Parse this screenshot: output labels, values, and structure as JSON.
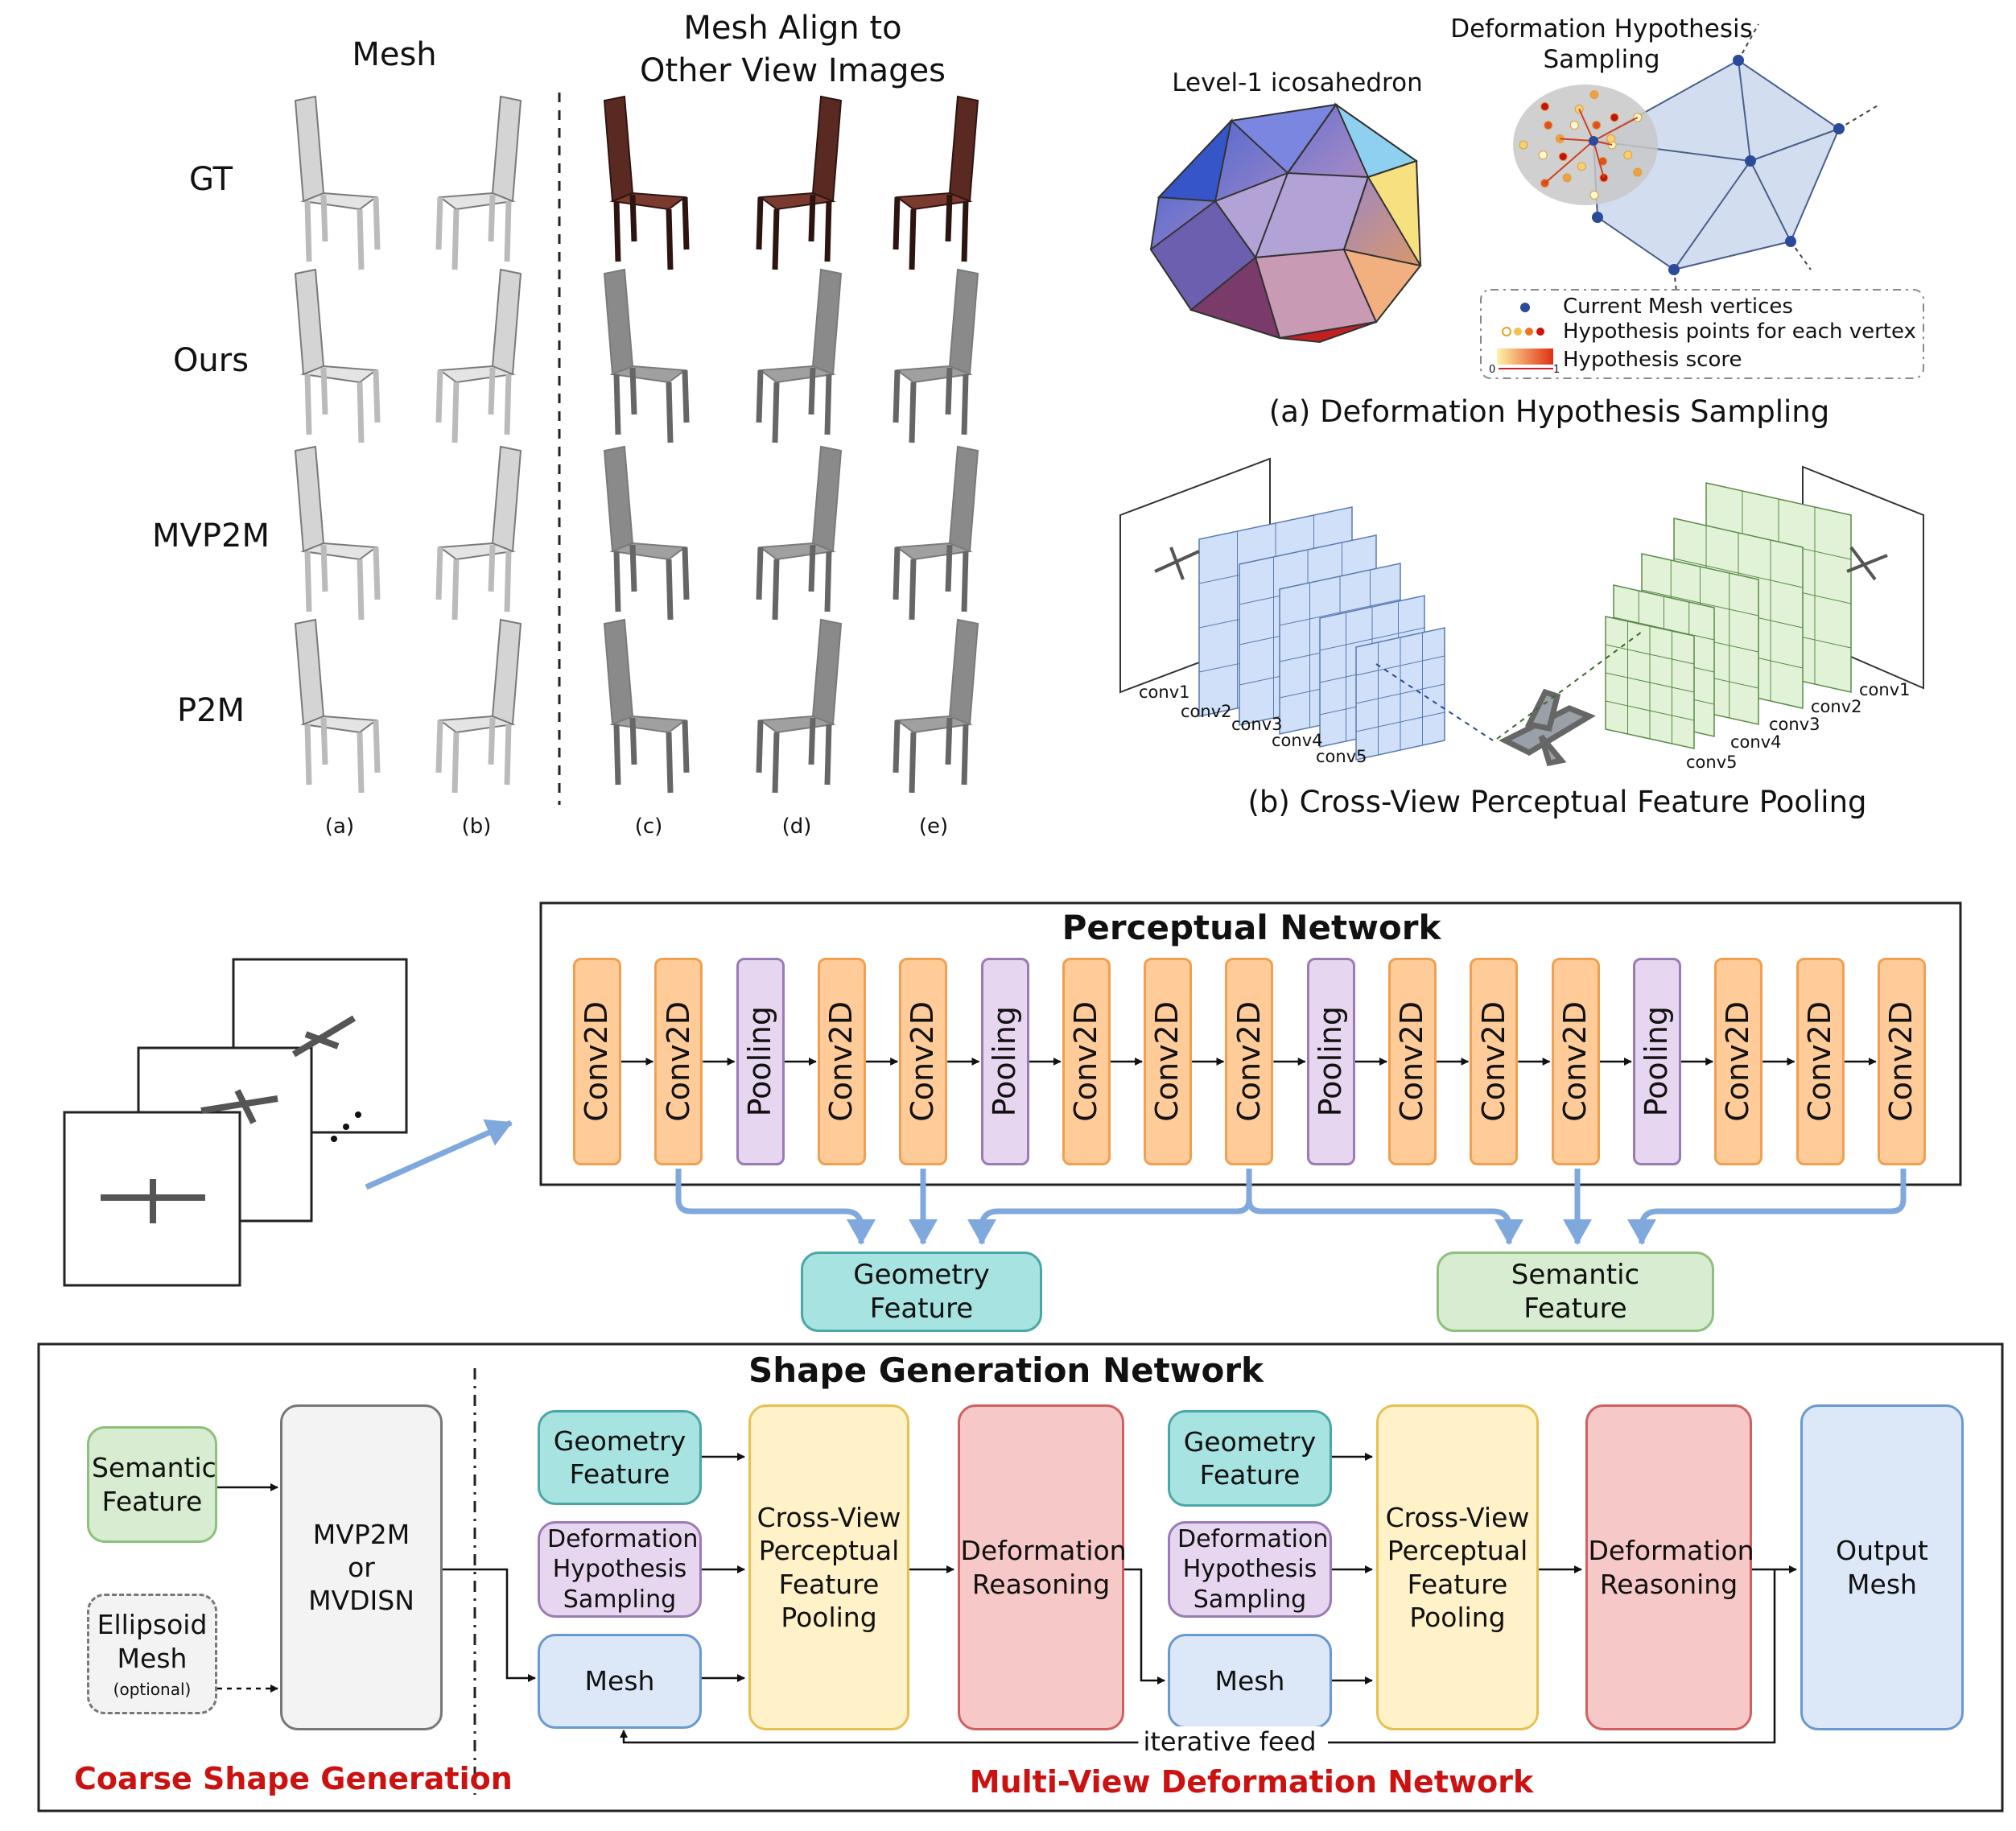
{
  "top_left": {
    "col_mesh": "Mesh",
    "col_align_line1": "Mesh Align to",
    "col_align_line2": "Other View Images",
    "rows": [
      "GT",
      "Ours",
      "MVP2M",
      "P2M"
    ],
    "sub_labels": [
      "(a)",
      "(b)",
      "(c)",
      "(d)",
      "(e)"
    ]
  },
  "panel_a": {
    "ico_title": "Level-1 icosahedron",
    "dhs_title_line1": "Deformation Hypothesis",
    "dhs_title_line2": "Sampling",
    "legend": [
      "Current Mesh vertices",
      "Hypothesis points for each vertex",
      "Hypothesis score"
    ],
    "score_min": "0",
    "score_max": "1",
    "caption": "(a) Deformation Hypothesis Sampling"
  },
  "panel_b": {
    "left_convs": [
      "conv1",
      "conv2",
      "conv3",
      "conv4",
      "conv5"
    ],
    "right_convs": [
      "conv1",
      "conv2",
      "conv3",
      "conv4",
      "conv5"
    ],
    "caption": "(b) Cross-View Perceptual Feature Pooling"
  },
  "perceptual": {
    "title": "Perceptual Network",
    "layers": [
      "Conv2D",
      "Conv2D",
      "Pooling",
      "Conv2D",
      "Conv2D",
      "Pooling",
      "Conv2D",
      "Conv2D",
      "Conv2D",
      "Pooling",
      "Conv2D",
      "Conv2D",
      "Conv2D",
      "Pooling",
      "Conv2D",
      "Conv2D",
      "Conv2D"
    ],
    "geometry_feature": "Geometry Feature",
    "semantic_feature": "Semantic Feature"
  },
  "shape_gen": {
    "title": "Shape Generation Network",
    "semantic_feature": "Semantic Feature",
    "ellipsoid_line1": "Ellipsoid",
    "ellipsoid_line2": "Mesh",
    "ellipsoid_note": "(optional)",
    "mvp2m_line1": "MVP2M",
    "mvp2m_line2": "or",
    "mvp2m_line3": "MVDISN",
    "geometry_feature_1": "Geometry Feature",
    "dhs_1": "Deformation Hypothesis Sampling",
    "mesh_1": "Mesh",
    "cvpfp_1": "Cross-View Perceptual Feature Pooling",
    "dr_1": "Deformation Reasoning",
    "geometry_feature_2": "Geometry Feature",
    "dhs_2": "Deformation Hypothesis Sampling",
    "mesh_2": "Mesh",
    "cvpfp_2": "Cross-View Perceptual Feature Pooling",
    "dr_2": "Deformation Reasoning",
    "output_mesh": "Output Mesh",
    "iterative_feed": "iterative feed",
    "coarse_label": "Coarse Shape  Generation",
    "mvdn_label": "Multi-View Deformation Network"
  },
  "colors": {
    "conv_fill": "#ffcc99",
    "pool_fill": "#e6d6ef",
    "geometry_fill": "#a6e3e1",
    "semantic_fill": "#d7ecd0",
    "dhs_fill": "#e6d6ef",
    "mesh_fill": "#dce8f8",
    "cvpfp_fill": "#fff2c8",
    "dr_fill": "#f7c8c8",
    "output_fill": "#dce8f8",
    "red_label": "#cc1111",
    "arrow_blue": "#7fa8dc"
  }
}
